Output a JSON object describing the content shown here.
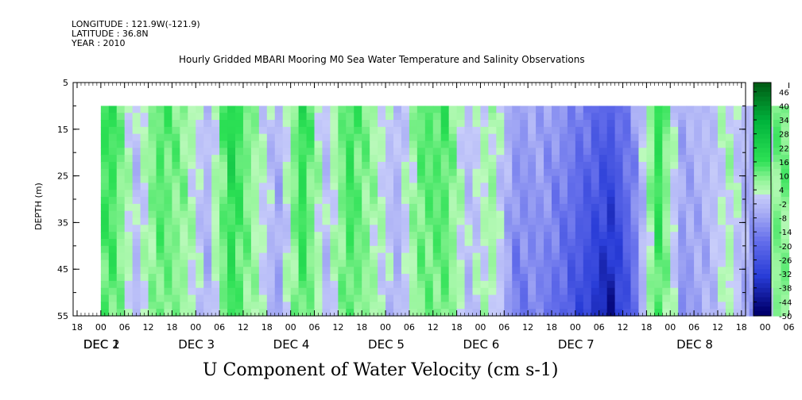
{
  "header": {
    "longitude": "LONGITUDE : 121.9W(-121.9)",
    "latitude": "LATITUDE : 36.8N",
    "year": "YEAR : 2010"
  },
  "chart_data": {
    "type": "heatmap",
    "title": "Hourly Gridded MBARI Mooring M0 Sea Water Temperature and Salinity Observations",
    "xlabel": "U Component of Water Velocity (cm s-1)",
    "ylabel": "DEPTH (m)",
    "x_hour_ticks": [
      "18",
      "00",
      "06",
      "12",
      "18",
      "00",
      "06",
      "12",
      "18",
      "00",
      "06",
      "12",
      "18",
      "00",
      "06",
      "12",
      "18",
      "00",
      "06",
      "12",
      "18",
      "00",
      "06",
      "12",
      "18",
      "00",
      "06",
      "12",
      "18",
      "00",
      "06",
      "12",
      "18",
      "00",
      "06",
      "12",
      "18"
    ],
    "x_day_ticks": [
      {
        "label": "DEC  1",
        "hour_index": 1
      },
      {
        "label": "DEC  2",
        "hour_index": 1
      },
      {
        "label": "DEC  3",
        "hour_index": 5
      },
      {
        "label": "DEC  4",
        "hour_index": 9
      },
      {
        "label": "DEC  5",
        "hour_index": 13
      },
      {
        "label": "DEC  6",
        "hour_index": 17
      },
      {
        "label": "DEC  7",
        "hour_index": 21
      },
      {
        "label": "DEC  8",
        "hour_index": 26
      }
    ],
    "y_ticks": [
      5,
      15,
      25,
      35,
      45,
      55
    ],
    "y_range": [
      5,
      55
    ],
    "y_inverted": true,
    "data_depth_range": [
      10,
      55
    ],
    "time_range_hours": [
      0,
      174
    ],
    "colorbar": {
      "levels": [
        48,
        46,
        44,
        42,
        40,
        38,
        36,
        34,
        32,
        30,
        28,
        26,
        24,
        22,
        20,
        18,
        16,
        14,
        12,
        10,
        8,
        6,
        4,
        2,
        0,
        -2,
        -4,
        -6,
        -8,
        -10,
        -12,
        -14,
        -16,
        -18,
        -20,
        -22,
        -24,
        -26,
        -28,
        -30,
        -32,
        -34,
        -36,
        -38,
        -40,
        -42,
        -44,
        -46,
        -48,
        -50
      ],
      "labels": [
        "46",
        "40",
        "34",
        "28",
        "22",
        "16",
        "10",
        "4",
        "-2",
        "-8",
        "-14",
        "-20",
        "-26",
        "-32",
        "-38",
        "-44",
        "-50"
      ]
    },
    "velocity_column_profile": [
      {
        "hour": 3,
        "value": 14
      },
      {
        "hour": 9,
        "value": -4
      },
      {
        "hour": 15,
        "value": 12
      },
      {
        "hour": 21,
        "value": 6
      },
      {
        "hour": 27,
        "value": -6
      },
      {
        "hour": 33,
        "value": 18
      },
      {
        "hour": 39,
        "value": 4
      },
      {
        "hour": 45,
        "value": -8
      },
      {
        "hour": 51,
        "value": 16
      },
      {
        "hour": 57,
        "value": -4
      },
      {
        "hour": 63,
        "value": 14
      },
      {
        "hour": 69,
        "value": 4
      },
      {
        "hour": 75,
        "value": -6
      },
      {
        "hour": 81,
        "value": 10
      },
      {
        "hour": 87,
        "value": 12
      },
      {
        "hour": 93,
        "value": -4
      },
      {
        "hour": 99,
        "value": 4
      },
      {
        "hour": 105,
        "value": -14
      },
      {
        "hour": 111,
        "value": -12
      },
      {
        "hour": 117,
        "value": -18
      },
      {
        "hour": 123,
        "value": -26
      },
      {
        "hour": 129,
        "value": -34
      },
      {
        "hour": 135,
        "value": -16
      },
      {
        "hour": 141,
        "value": 16
      },
      {
        "hour": 147,
        "value": -10
      },
      {
        "hour": 153,
        "value": -6
      },
      {
        "hour": 159,
        "value": 2
      },
      {
        "hour": 165,
        "value": -10
      },
      {
        "hour": 171,
        "value": 8
      }
    ]
  }
}
